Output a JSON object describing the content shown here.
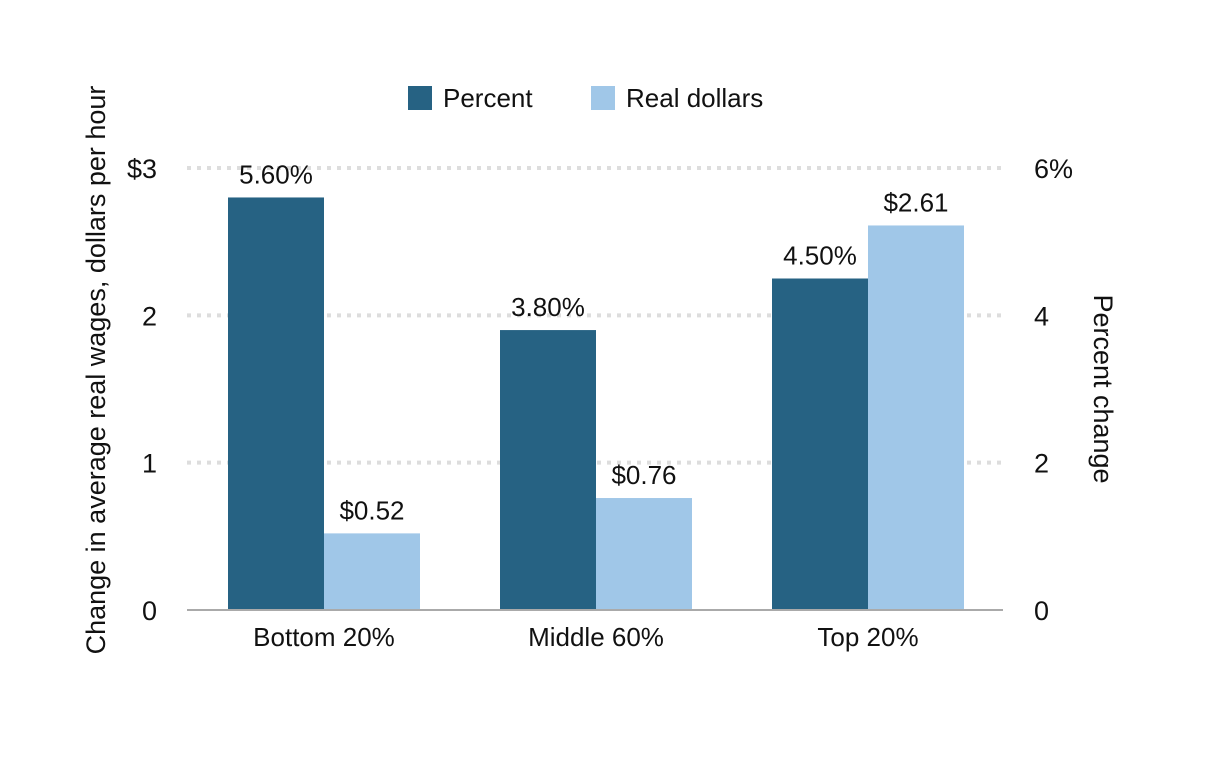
{
  "chart_data": {
    "type": "bar",
    "categories": [
      "Bottom 20%",
      "Middle 60%",
      "Top 20%"
    ],
    "series": [
      {
        "name": "Percent",
        "axis": "right",
        "color": "#266283",
        "values": [
          5.6,
          3.8,
          4.5
        ],
        "labels": [
          "5.60%",
          "3.80%",
          "4.50%"
        ]
      },
      {
        "name": "Real dollars",
        "axis": "left",
        "color": "#a0c7e8",
        "values": [
          0.52,
          0.76,
          2.61
        ],
        "labels": [
          "$0.52",
          "$0.76",
          "$2.61"
        ]
      }
    ],
    "left_axis": {
      "title": "Change in average real wages, dollars per hour",
      "range": [
        0,
        3
      ],
      "ticks": [
        {
          "value": 0,
          "label": "0"
        },
        {
          "value": 1,
          "label": "1"
        },
        {
          "value": 2,
          "label": "2"
        },
        {
          "value": 3,
          "label": "$3"
        }
      ]
    },
    "right_axis": {
      "title": "Percent change",
      "range": [
        0,
        6
      ],
      "ticks": [
        {
          "value": 0,
          "label": "0"
        },
        {
          "value": 2,
          "label": "2"
        },
        {
          "value": 4,
          "label": "4"
        },
        {
          "value": 6,
          "label": "6%"
        }
      ]
    },
    "grid": true,
    "legend": "top-center"
  }
}
